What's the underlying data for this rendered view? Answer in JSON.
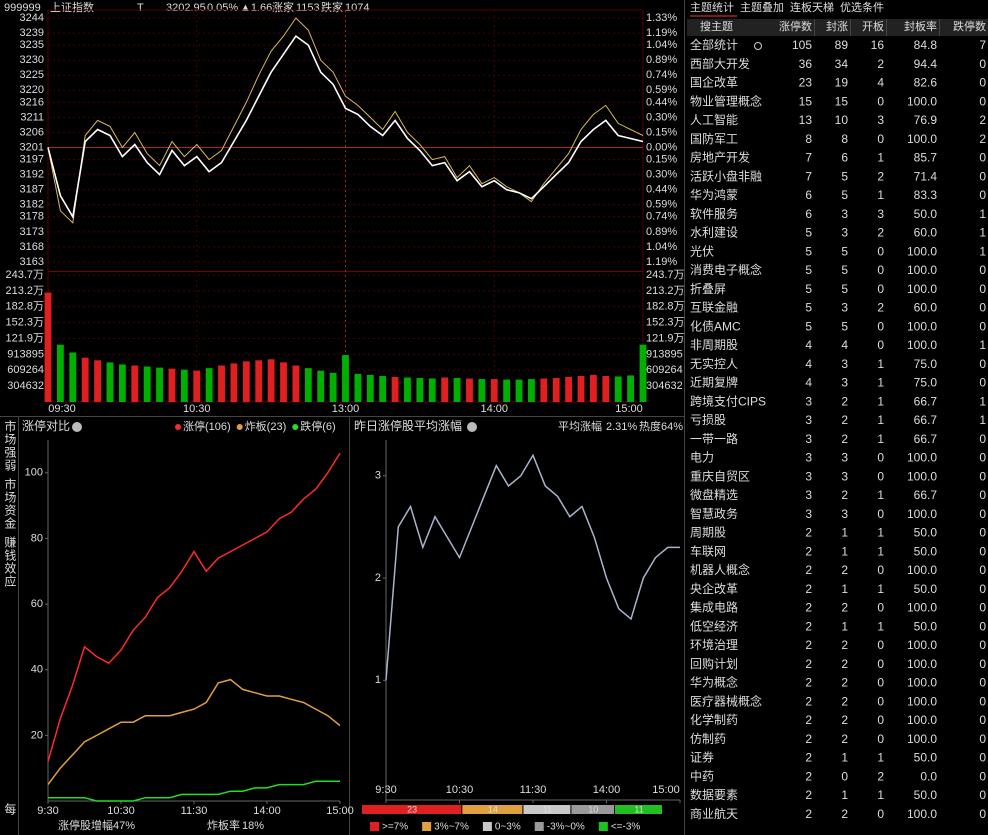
{
  "header": {
    "code": "999999",
    "name": "上证指数",
    "flag": "T",
    "price": "3202.95",
    "pct": "0.05%",
    "change": "▲1.66",
    "up_label": "涨家",
    "up": "1153",
    "down_label": "跌家",
    "down": "1074"
  },
  "side_tabs": [
    "市场强弱",
    "市场资金",
    "赚钱效应",
    "每"
  ],
  "index_chart": {
    "type": "line",
    "base": 3201,
    "ylim": [
      3161,
      3246
    ],
    "yticks": [
      3244,
      3239,
      3235,
      3230,
      3225,
      3220,
      3216,
      3211,
      3206,
      3201,
      3197,
      3192,
      3187,
      3182,
      3178,
      3173,
      3168,
      3163
    ],
    "pct_ticks": [
      {
        "value": 3244,
        "label": "1.33%"
      },
      {
        "value": 3239,
        "label": "1.19%"
      },
      {
        "value": 3235,
        "label": "1.04%"
      },
      {
        "value": 3230,
        "label": "0.89%"
      },
      {
        "value": 3225,
        "label": "0.74%"
      },
      {
        "value": 3220,
        "label": "0.59%"
      },
      {
        "value": 3216,
        "label": "0.44%"
      },
      {
        "value": 3211,
        "label": "0.30%"
      },
      {
        "value": 3206,
        "label": "0.15%"
      },
      {
        "value": 3201,
        "label": "0.00%"
      },
      {
        "value": 3197,
        "label": "0.15%"
      },
      {
        "value": 3192,
        "label": "0.30%"
      },
      {
        "value": 3187,
        "label": "0.44%"
      },
      {
        "value": 3182,
        "label": "0.59%"
      },
      {
        "value": 3178,
        "label": "0.74%"
      },
      {
        "value": 3173,
        "label": "0.89%"
      },
      {
        "value": 3168,
        "label": "1.04%"
      },
      {
        "value": 3163,
        "label": "1.19%"
      }
    ],
    "xlim": [
      0,
      48
    ],
    "xticks": [
      {
        "value": 0,
        "label": "09:30"
      },
      {
        "value": 12,
        "label": "10:30"
      },
      {
        "value": 24,
        "label": "13:00"
      },
      {
        "value": 36,
        "label": "14:00"
      },
      {
        "value": 48,
        "label": "15:00"
      }
    ],
    "price_color": "#ffffff",
    "lead_color": "#d9b85a",
    "price": [
      3201,
      3185,
      3178,
      3203,
      3207,
      3205,
      3198,
      3202,
      3196,
      3192,
      3200,
      3195,
      3198,
      3193,
      3196,
      3203,
      3210,
      3218,
      3226,
      3232,
      3238,
      3235,
      3226,
      3222,
      3214,
      3212,
      3208,
      3205,
      3210,
      3204,
      3200,
      3195,
      3196,
      3190,
      3193,
      3188,
      3190,
      3187,
      3186,
      3184,
      3188,
      3192,
      3196,
      3203,
      3207,
      3210,
      3205,
      3204,
      3203
    ],
    "lead": [
      3201,
      3180,
      3176,
      3205,
      3210,
      3208,
      3201,
      3206,
      3199,
      3195,
      3203,
      3198,
      3202,
      3197,
      3200,
      3208,
      3216,
      3225,
      3233,
      3238,
      3244,
      3240,
      3230,
      3226,
      3218,
      3215,
      3211,
      3207,
      3213,
      3206,
      3202,
      3197,
      3198,
      3191,
      3195,
      3189,
      3191,
      3188,
      3186,
      3183,
      3189,
      3194,
      3199,
      3207,
      3212,
      3215,
      3209,
      3207,
      3205
    ],
    "vol_lim": [
      0,
      2437056
    ],
    "vol_ticks": [
      {
        "value": 2437056,
        "label": "243.7万"
      },
      {
        "value": 2132424,
        "label": "213.2万"
      },
      {
        "value": 1827792,
        "label": "182.8万"
      },
      {
        "value": 1523160,
        "label": "152.3万"
      },
      {
        "value": 1218528,
        "label": "121.9万"
      },
      913895,
      609264,
      304632
    ],
    "volume": [
      2100000,
      1100000,
      950000,
      850000,
      800000,
      760000,
      720000,
      700000,
      680000,
      660000,
      640000,
      620000,
      600000,
      650000,
      700000,
      740000,
      780000,
      800000,
      820000,
      760000,
      700000,
      650000,
      600000,
      560000,
      900000,
      540000,
      520000,
      500000,
      480000,
      470000,
      460000,
      450000,
      470000,
      460000,
      450000,
      440000,
      440000,
      430000,
      430000,
      440000,
      450000,
      460000,
      480000,
      500000,
      520000,
      500000,
      490000,
      510000,
      1100000
    ]
  },
  "limit_chart": {
    "type": "line",
    "title": "涨停对比",
    "ylim": [
      0,
      110
    ],
    "yticks": [
      20,
      40,
      60,
      80,
      100
    ],
    "xlim": [
      0,
      24
    ],
    "xticks": [
      {
        "value": 0,
        "label": "9:30"
      },
      {
        "value": 6,
        "label": "10:30"
      },
      {
        "value": 12,
        "label": "11:30"
      },
      {
        "value": 18,
        "label": "14:00"
      },
      {
        "value": 24,
        "label": "15:00"
      }
    ],
    "series": [
      {
        "name": "涨停(106)",
        "color": "#ff2a2a",
        "values": [
          12,
          25,
          35,
          47,
          44,
          42,
          46,
          52,
          56,
          62,
          65,
          70,
          76,
          70,
          74,
          76,
          78,
          80,
          82,
          86,
          88,
          92,
          95,
          100,
          106
        ]
      },
      {
        "name": "炸板(23)",
        "color": "#e0a040",
        "values": [
          5,
          10,
          14,
          18,
          20,
          22,
          24,
          24,
          26,
          26,
          26,
          27,
          28,
          30,
          36,
          37,
          34,
          33,
          32,
          32,
          31,
          30,
          28,
          26,
          23
        ]
      },
      {
        "name": "跌停(6)",
        "color": "#20e020",
        "values": [
          1,
          1,
          1,
          1,
          0,
          0,
          0,
          0,
          1,
          1,
          1,
          2,
          2,
          2,
          2,
          3,
          3,
          4,
          4,
          5,
          5,
          5,
          6,
          6,
          6
        ]
      }
    ],
    "footer": [
      {
        "label": "涨停股增幅",
        "value": "47%"
      },
      {
        "label": "炸板率",
        "value": "18%"
      }
    ]
  },
  "avg_chart": {
    "type": "line",
    "title": "昨日涨停股平均涨幅",
    "avg_label": "平均涨幅",
    "avg_value": "2.31%",
    "heat": "热度64%",
    "color": "#a8b4cc",
    "ylim": [
      -0.17,
      3.35
    ],
    "yticks": [
      1,
      2,
      3
    ],
    "xlim": [
      0,
      24
    ],
    "xticks": [
      {
        "value": 0,
        "label": "9:30"
      },
      {
        "value": 6,
        "label": "10:30"
      },
      {
        "value": 12,
        "label": "11:30"
      },
      {
        "value": 18,
        "label": "14:00"
      },
      {
        "value": 24,
        "label": "15:00"
      }
    ],
    "values": [
      1.0,
      2.5,
      2.7,
      2.3,
      2.6,
      2.4,
      2.2,
      2.5,
      2.8,
      3.1,
      2.9,
      3.0,
      3.2,
      2.9,
      2.8,
      2.6,
      2.7,
      2.4,
      2.0,
      1.7,
      1.6,
      2.0,
      2.2,
      2.3,
      2.3
    ],
    "breadth": [
      {
        "name": ">=7%",
        "color": "#e02020",
        "values": 23
      },
      {
        "name": "3%~7%",
        "color": "#e0a040",
        "values": 14
      },
      {
        "name": "0~3%",
        "color": "#c8c8c8",
        "values": 11
      },
      {
        "name": "-3%~0%",
        "color": "#9a9a9a",
        "values": 10
      },
      {
        "name": "<=-3%",
        "color": "#20c020",
        "values": 11
      }
    ]
  },
  "table": {
    "tabs": [
      "主题统计",
      "主题叠加",
      "连板天梯",
      "优选条件"
    ],
    "columns": [
      "搜主题",
      "涨停数",
      "封涨",
      "开板",
      "封板率",
      "跌停数"
    ],
    "rows": [
      [
        "全部统计",
        "105",
        "89",
        "16",
        "84.8",
        "7"
      ],
      [
        "西部大开发",
        "36",
        "34",
        "2",
        "94.4",
        "0"
      ],
      [
        "国企改革",
        "23",
        "19",
        "4",
        "82.6",
        "0"
      ],
      [
        "物业管理概念",
        "15",
        "15",
        "0",
        "100.0",
        "0"
      ],
      [
        "人工智能",
        "13",
        "10",
        "3",
        "76.9",
        "2"
      ],
      [
        "国防军工",
        "8",
        "8",
        "0",
        "100.0",
        "2"
      ],
      [
        "房地产开发",
        "7",
        "6",
        "1",
        "85.7",
        "0"
      ],
      [
        "活跃小盘非融",
        "7",
        "5",
        "2",
        "71.4",
        "0"
      ],
      [
        "华为鸿蒙",
        "6",
        "5",
        "1",
        "83.3",
        "0"
      ],
      [
        "软件服务",
        "6",
        "3",
        "3",
        "50.0",
        "1"
      ],
      [
        "水利建设",
        "5",
        "3",
        "2",
        "60.0",
        "1"
      ],
      [
        "光伏",
        "5",
        "5",
        "0",
        "100.0",
        "1"
      ],
      [
        "消费电子概念",
        "5",
        "5",
        "0",
        "100.0",
        "0"
      ],
      [
        "折叠屏",
        "5",
        "5",
        "0",
        "100.0",
        "0"
      ],
      [
        "互联金融",
        "5",
        "3",
        "2",
        "60.0",
        "0"
      ],
      [
        "化债AMC",
        "5",
        "5",
        "0",
        "100.0",
        "0"
      ],
      [
        "非周期股",
        "4",
        "4",
        "0",
        "100.0",
        "1"
      ],
      [
        "无实控人",
        "4",
        "3",
        "1",
        "75.0",
        "0"
      ],
      [
        "近期复牌",
        "4",
        "3",
        "1",
        "75.0",
        "0"
      ],
      [
        "跨境支付CIPS",
        "3",
        "2",
        "1",
        "66.7",
        "1"
      ],
      [
        "亏损股",
        "3",
        "2",
        "1",
        "66.7",
        "1"
      ],
      [
        "一带一路",
        "3",
        "2",
        "1",
        "66.7",
        "0"
      ],
      [
        "电力",
        "3",
        "3",
        "0",
        "100.0",
        "0"
      ],
      [
        "重庆自贸区",
        "3",
        "3",
        "0",
        "100.0",
        "0"
      ],
      [
        "微盘精选",
        "3",
        "2",
        "1",
        "66.7",
        "0"
      ],
      [
        "智慧政务",
        "3",
        "3",
        "0",
        "100.0",
        "0"
      ],
      [
        "周期股",
        "2",
        "1",
        "1",
        "50.0",
        "0"
      ],
      [
        "车联网",
        "2",
        "1",
        "1",
        "50.0",
        "0"
      ],
      [
        "机器人概念",
        "2",
        "2",
        "0",
        "100.0",
        "0"
      ],
      [
        "央企改革",
        "2",
        "1",
        "1",
        "50.0",
        "0"
      ],
      [
        "集成电路",
        "2",
        "2",
        "0",
        "100.0",
        "0"
      ],
      [
        "低空经济",
        "2",
        "1",
        "1",
        "50.0",
        "0"
      ],
      [
        "环境治理",
        "2",
        "2",
        "0",
        "100.0",
        "0"
      ],
      [
        "回购计划",
        "2",
        "2",
        "0",
        "100.0",
        "0"
      ],
      [
        "华为概念",
        "2",
        "2",
        "0",
        "100.0",
        "0"
      ],
      [
        "医疗器械概念",
        "2",
        "2",
        "0",
        "100.0",
        "0"
      ],
      [
        "化学制药",
        "2",
        "2",
        "0",
        "100.0",
        "0"
      ],
      [
        "仿制药",
        "2",
        "2",
        "0",
        "100.0",
        "0"
      ],
      [
        "证券",
        "2",
        "1",
        "1",
        "50.0",
        "0"
      ],
      [
        "中药",
        "2",
        "0",
        "2",
        "0.0",
        "0"
      ],
      [
        "数据要素",
        "2",
        "1",
        "1",
        "50.0",
        "0"
      ],
      [
        "商业航天",
        "2",
        "2",
        "0",
        "100.0",
        "0"
      ]
    ]
  }
}
